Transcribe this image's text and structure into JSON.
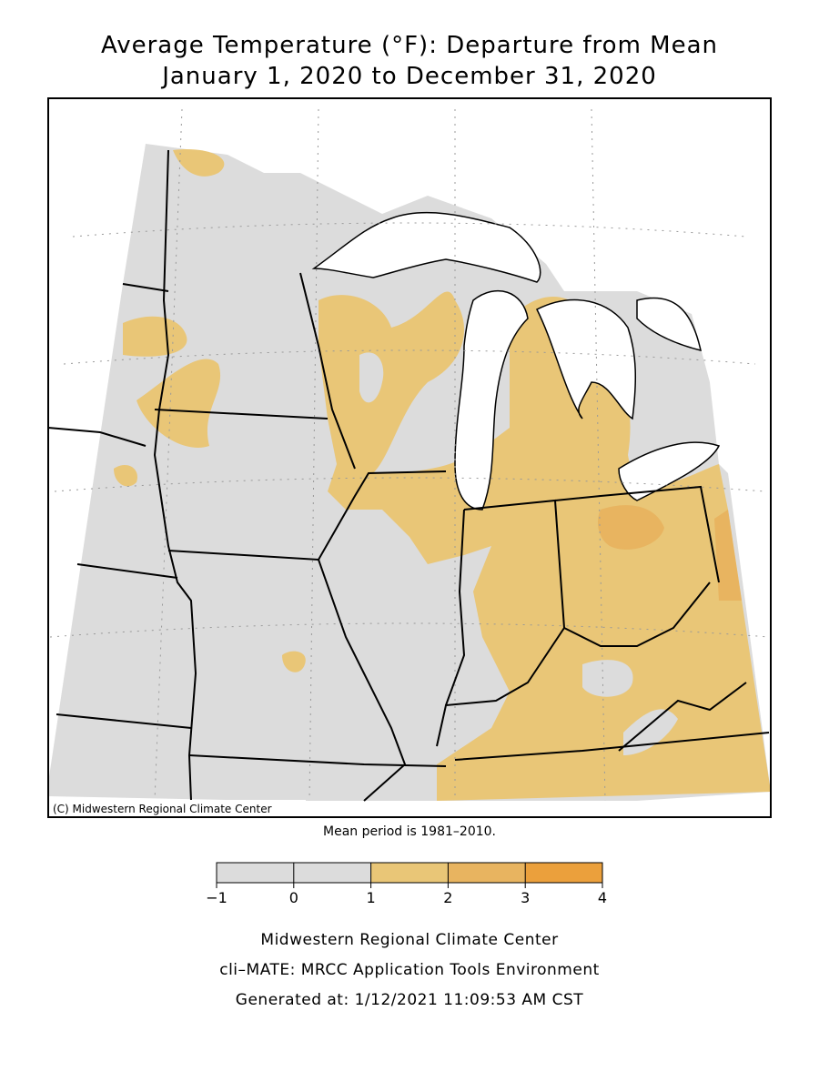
{
  "title": [
    "Average Temperature (°F): Departure from Mean",
    "January 1, 2020 to December 31, 2020"
  ],
  "copyright": "(C) Midwestern Regional Climate Center",
  "note": "Mean period is 1981–2010.",
  "legend": {
    "ticks": [
      {
        "value": -1,
        "label": "−1"
      },
      0,
      1,
      2,
      3,
      4
    ],
    "colors": [
      "#dcdcdc",
      "#dcdcdc",
      "#e9c677",
      "#e8b460",
      "#eba03c"
    ]
  },
  "footer": [
    "Midwestern Regional Climate Center",
    "cli–MATE: MRCC Application Tools Environment",
    "Generated at: 1/12/2021 11:09:53 AM CST"
  ]
}
